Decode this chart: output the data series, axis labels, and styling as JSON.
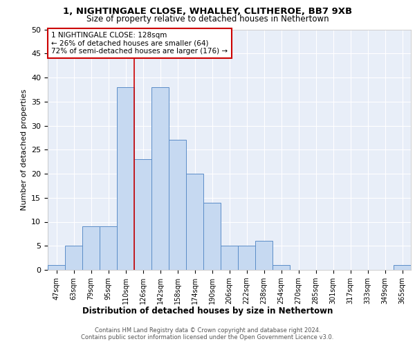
{
  "title1": "1, NIGHTINGALE CLOSE, WHALLEY, CLITHEROE, BB7 9XB",
  "title2": "Size of property relative to detached houses in Nethertown",
  "xlabel": "Distribution of detached houses by size in Nethertown",
  "ylabel": "Number of detached properties",
  "categories": [
    "47sqm",
    "63sqm",
    "79sqm",
    "95sqm",
    "110sqm",
    "126sqm",
    "142sqm",
    "158sqm",
    "174sqm",
    "190sqm",
    "206sqm",
    "222sqm",
    "238sqm",
    "254sqm",
    "270sqm",
    "285sqm",
    "301sqm",
    "317sqm",
    "333sqm",
    "349sqm",
    "365sqm"
  ],
  "values": [
    1,
    5,
    9,
    9,
    38,
    23,
    38,
    27,
    20,
    14,
    5,
    5,
    6,
    1,
    0,
    0,
    0,
    0,
    0,
    0,
    1
  ],
  "bar_color": "#c6d9f1",
  "bar_edge_color": "#5b8dc8",
  "vline_color": "#cc0000",
  "vline_x": 4.5,
  "annotation_text": "1 NIGHTINGALE CLOSE: 128sqm\n← 26% of detached houses are smaller (64)\n72% of semi-detached houses are larger (176) →",
  "annotation_box_color": "#cc0000",
  "footer1": "Contains HM Land Registry data © Crown copyright and database right 2024.",
  "footer2": "Contains public sector information licensed under the Open Government Licence v3.0.",
  "ylim": [
    0,
    50
  ],
  "yticks": [
    0,
    5,
    10,
    15,
    20,
    25,
    30,
    35,
    40,
    45,
    50
  ],
  "plot_bg_color": "#e8eef8",
  "grid_color": "#ffffff"
}
